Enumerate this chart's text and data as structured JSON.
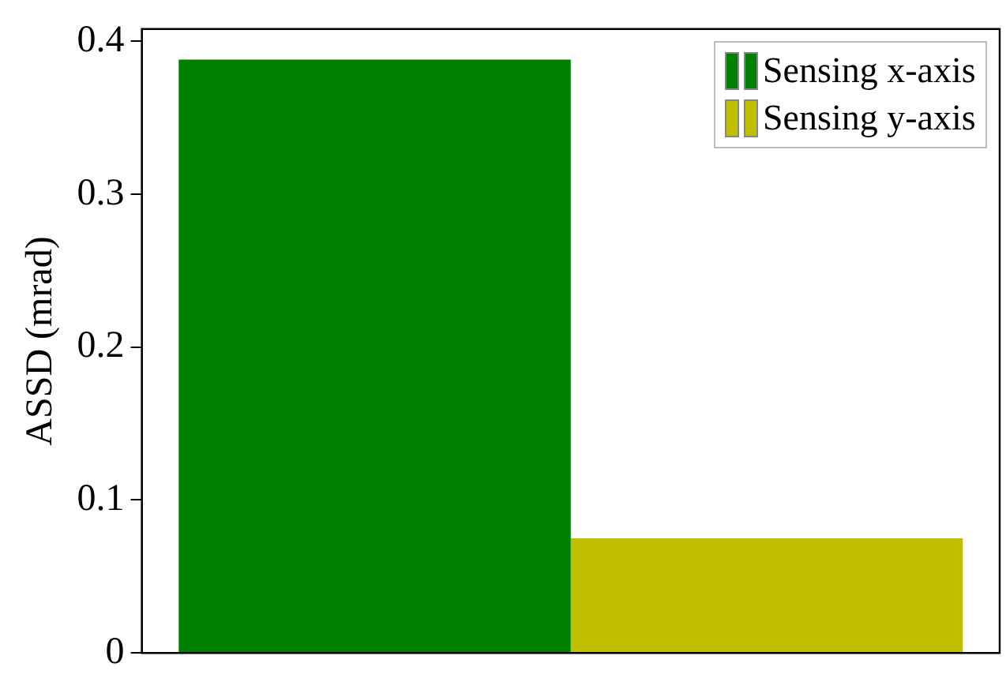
{
  "chart_data": {
    "type": "bar",
    "ylabel": "ASSD (mrad)",
    "categories": [
      null
    ],
    "series": [
      {
        "name": "Sensing x-axis",
        "color": "#008000",
        "values": [
          0.388
        ]
      },
      {
        "name": "Sensing y-axis",
        "color": "#bfbf00",
        "values": [
          0.075
        ]
      }
    ],
    "ylim": [
      0,
      0.408
    ],
    "yticks": [
      0,
      0.1,
      0.2,
      0.3,
      0.4
    ],
    "grid": false,
    "legend": "top right"
  }
}
